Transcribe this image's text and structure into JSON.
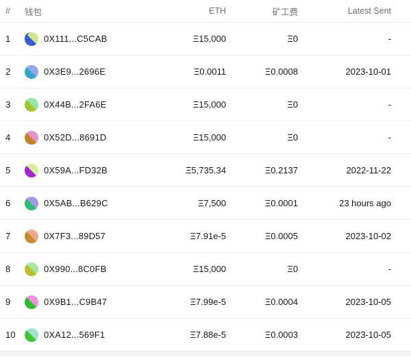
{
  "table": {
    "headers": {
      "index": "#",
      "wallet": "钱包",
      "eth": "ETH",
      "fee": "矿工费",
      "latest_sent": "Latest Sent"
    },
    "rows": [
      {
        "num": "1",
        "wallet": "0X111...C5CAB",
        "eth": "Ξ15,000",
        "fee": "Ξ0",
        "latest": "-",
        "avatar": {
          "dark": "#3c5ccf",
          "light": "#cbe78e",
          "tip": "#1c2d7a"
        }
      },
      {
        "num": "2",
        "wallet": "0X3E9...2696E",
        "eth": "Ξ0.0011",
        "fee": "Ξ0.0008",
        "latest": "2023-10-01",
        "avatar": {
          "dark": "#38a3cb",
          "light": "#93a7e4"
        }
      },
      {
        "num": "3",
        "wallet": "0X44B...2FA6E",
        "eth": "Ξ15,000",
        "fee": "Ξ0",
        "latest": "-",
        "avatar": {
          "dark": "#a3c62f",
          "light": "#90e8a3"
        }
      },
      {
        "num": "4",
        "wallet": "0X52D...8691D",
        "eth": "Ξ15,000",
        "fee": "Ξ0",
        "latest": "-",
        "avatar": {
          "dark": "#c5832f",
          "light": "#e693cc"
        }
      },
      {
        "num": "5",
        "wallet": "0X59A...FD32B",
        "eth": "Ξ5,735.34",
        "fee": "Ξ0.2137",
        "latest": "2022-11-22",
        "avatar": {
          "dark": "#a426c9",
          "light": "#d3ef9f"
        }
      },
      {
        "num": "6",
        "wallet": "0X5AB...B629C",
        "eth": "Ξ7,500",
        "fee": "Ξ0.0001",
        "latest": "23 hours ago",
        "avatar": {
          "dark": "#2dbe76",
          "light": "#a897e6"
        }
      },
      {
        "num": "7",
        "wallet": "0X7F3...89D57",
        "eth": "Ξ7.91e-5",
        "fee": "Ξ0.0005",
        "latest": "2023-10-02",
        "avatar": {
          "dark": "#c68a2d",
          "light": "#eba890"
        }
      },
      {
        "num": "8",
        "wallet": "0X990...8C0FB",
        "eth": "Ξ15,000",
        "fee": "Ξ0",
        "latest": "-",
        "avatar": {
          "dark": "#bcbd2e",
          "light": "#a2e99e"
        }
      },
      {
        "num": "9",
        "wallet": "0X9B1...C9B47",
        "eth": "Ξ7.99e-5",
        "fee": "Ξ0.0004",
        "latest": "2023-10-05",
        "avatar": {
          "dark": "#2fbb2f",
          "light": "#ec92de"
        }
      },
      {
        "num": "10",
        "wallet": "0XA12...569F1",
        "eth": "Ξ7.88e-5",
        "fee": "Ξ0.0003",
        "latest": "2023-10-05",
        "avatar": {
          "dark": "#3fc43a",
          "light": "#a0e2cd"
        }
      }
    ]
  }
}
